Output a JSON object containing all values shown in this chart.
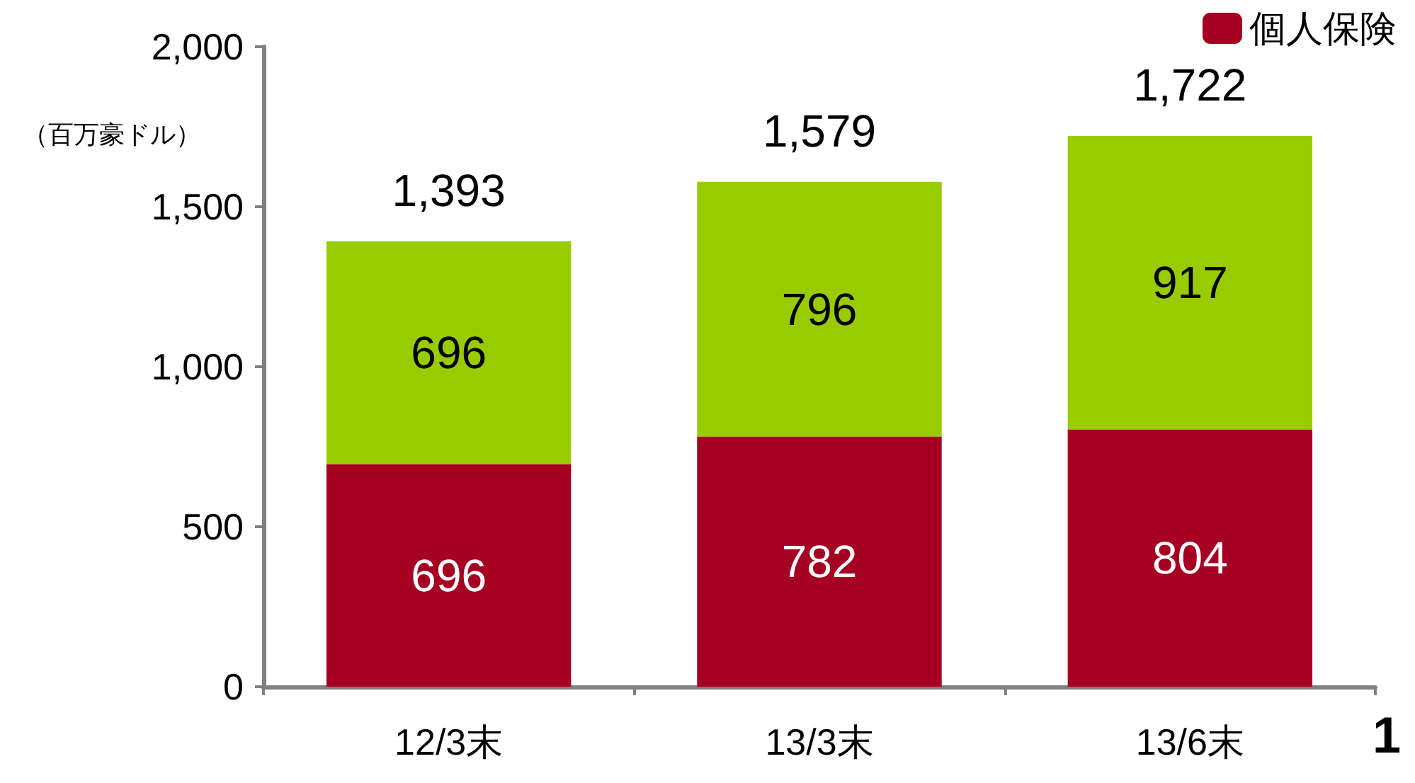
{
  "chart_data": {
    "type": "bar",
    "stacked": true,
    "ylabel": "（百万豪ドル）",
    "categories": [
      "12/3末",
      "13/3末",
      "13/6末"
    ],
    "series": [
      {
        "name": "個人保険",
        "color": "#a50021",
        "values": [
          696,
          782,
          804
        ]
      },
      {
        "color": "#99cc00",
        "values": [
          696,
          796,
          917
        ]
      }
    ],
    "totals": [
      "1,393",
      "1,579",
      "1,722"
    ],
    "data_labels": true,
    "ylim": [
      0,
      2000
    ],
    "yticks": [
      0,
      500,
      {
        "value": 1000,
        "label": "1,000"
      },
      {
        "value": 1500,
        "label": "1,500"
      },
      {
        "value": 2000,
        "label": "2,000"
      }
    ],
    "grid": false,
    "legend": "top right",
    "annotations": [
      "1"
    ]
  }
}
